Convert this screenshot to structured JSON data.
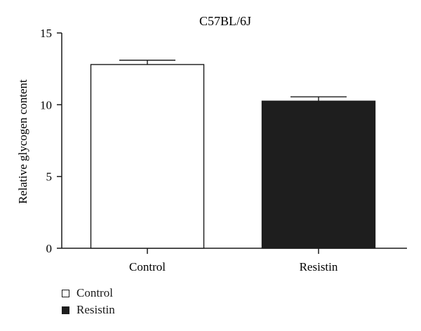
{
  "chart_data": {
    "type": "bar",
    "title": "C57BL/6J",
    "xlabel": "",
    "ylabel": "Relative glycogen content",
    "categories": [
      "Control",
      "Resistin"
    ],
    "values": [
      12.8,
      10.25
    ],
    "errors": [
      0.3,
      0.3
    ],
    "ylim": [
      0,
      15
    ],
    "yticks": [
      "0",
      "5",
      "10",
      "15"
    ],
    "grid": false,
    "legend_position": "bottom-left",
    "colors": {
      "Control": "#ffffff",
      "Resistin": "#1e1e1e",
      "axis": "#1a1a1a"
    }
  },
  "legend": {
    "items": [
      {
        "label": "Control",
        "color": "#ffffff"
      },
      {
        "label": "Resistin",
        "color": "#1e1e1e"
      }
    ]
  }
}
